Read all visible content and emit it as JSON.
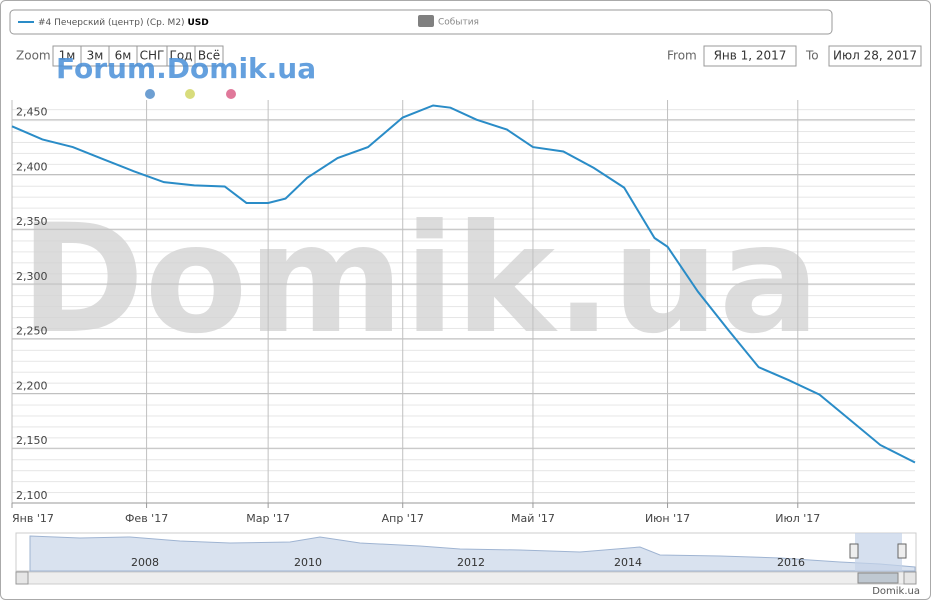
{
  "chart_data": {
    "type": "line",
    "series": [
      {
        "name": "#4 Печерский (центр) (Ср. М2)",
        "currency": "USD",
        "color": "#2a8cc7",
        "x": [
          "2017-01-01",
          "2017-01-08",
          "2017-01-15",
          "2017-01-22",
          "2017-01-29",
          "2017-02-05",
          "2017-02-12",
          "2017-02-19",
          "2017-02-24",
          "2017-03-01",
          "2017-03-05",
          "2017-03-10",
          "2017-03-17",
          "2017-03-24",
          "2017-04-01",
          "2017-04-08",
          "2017-04-12",
          "2017-04-18",
          "2017-04-25",
          "2017-05-01",
          "2017-05-08",
          "2017-05-15",
          "2017-05-22",
          "2017-05-29",
          "2017-06-01",
          "2017-06-08",
          "2017-06-15",
          "2017-06-22",
          "2017-06-29",
          "2017-07-06",
          "2017-07-13",
          "2017-07-20",
          "2017-07-28"
        ],
        "values": [
          2444,
          2432,
          2425,
          2414,
          2403,
          2393,
          2390,
          2389,
          2374,
          2374,
          2378,
          2397,
          2415,
          2425,
          2452,
          2463,
          2461,
          2450,
          2441,
          2425,
          2421,
          2406,
          2388,
          2342,
          2334,
          2293,
          2258,
          2224,
          2212,
          2199,
          2176,
          2153,
          2137
        ]
      }
    ],
    "events_label": "События",
    "zoom_label": "Zoom",
    "zoom_buttons": [
      "1м",
      "3м",
      "6м",
      "СНГ",
      "Год",
      "Всё"
    ],
    "from_label": "From",
    "from_value": "Янв 1, 2017",
    "to_label": "To",
    "to_value": "Июл 28, 2017",
    "watermark": "Domik.ua",
    "forum_watermark": "Forum.Domik.ua",
    "navigator_labels": [
      "2008",
      "2010",
      "2012",
      "2014",
      "2016"
    ],
    "credit": "Domik.ua",
    "xlim": [
      "2017-01-01",
      "2017-07-28"
    ],
    "xticks": [
      {
        "value": "2017-01-01",
        "label": "Янв '17"
      },
      {
        "value": "2017-02-01",
        "label": "Фев '17"
      },
      {
        "value": "2017-03-01",
        "label": "Мар '17"
      },
      {
        "value": "2017-04-01",
        "label": "Апр '17"
      },
      {
        "value": "2017-05-01",
        "label": "Май '17"
      },
      {
        "value": "2017-06-01",
        "label": "Июн '17"
      },
      {
        "value": "2017-07-01",
        "label": "Июл '17"
      }
    ],
    "ylim": [
      2100,
      2468
    ],
    "yticks": [
      {
        "value": 2100,
        "label": "2,100"
      },
      {
        "value": 2150,
        "label": "2,150"
      },
      {
        "value": 2200,
        "label": "2,200"
      },
      {
        "value": 2250,
        "label": "2,250"
      },
      {
        "value": 2300,
        "label": "2,300"
      },
      {
        "value": 2350,
        "label": "2,350"
      },
      {
        "value": 2400,
        "label": "2,400"
      },
      {
        "value": 2450,
        "label": "2,450"
      }
    ],
    "grid": true
  }
}
